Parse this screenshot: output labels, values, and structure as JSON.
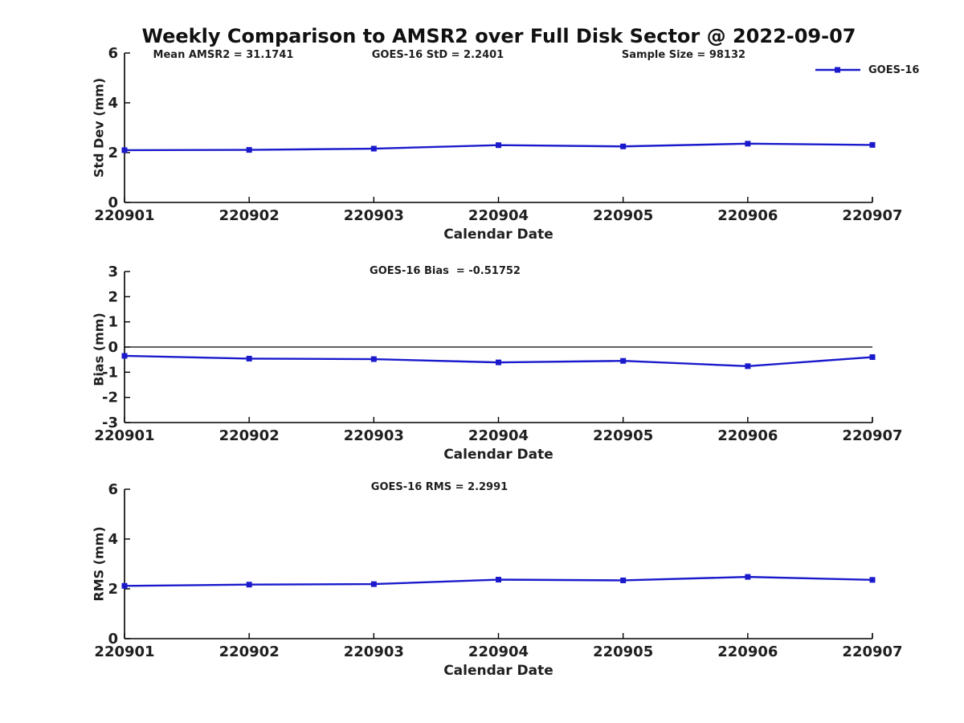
{
  "header": {
    "title": "Weekly Comparison to AMSR2 over Full Disk Sector @ 2022-09-07"
  },
  "legend": {
    "label": "GOES-16"
  },
  "colors": {
    "series": "#1a1acc",
    "axis": "#000000",
    "text": "#1f1f1f"
  },
  "chart_data": [
    {
      "type": "line",
      "ylabel": "Std Dev (mm)",
      "xlabel": "Calendar Date",
      "categories": [
        "220901",
        "220902",
        "220903",
        "220904",
        "220905",
        "220906",
        "220907"
      ],
      "series": [
        {
          "name": "GOES-16",
          "values": [
            2.1,
            2.11,
            2.16,
            2.3,
            2.25,
            2.36,
            2.31
          ]
        }
      ],
      "ylim": [
        0,
        6
      ],
      "yticks": [
        0,
        2,
        4,
        6
      ],
      "grid": false,
      "zero_line": false,
      "legend_position": "top-right",
      "annotations": [
        "Mean AMSR2 = 31.1741",
        "GOES-16 StD = 2.2401",
        "Sample Size = 98132"
      ]
    },
    {
      "type": "line",
      "ylabel": "Bias (mm)",
      "xlabel": "Calendar Date",
      "categories": [
        "220901",
        "220902",
        "220903",
        "220904",
        "220905",
        "220906",
        "220907"
      ],
      "series": [
        {
          "name": "GOES-16",
          "values": [
            -0.35,
            -0.46,
            -0.48,
            -0.61,
            -0.55,
            -0.76,
            -0.4
          ]
        }
      ],
      "ylim": [
        -3,
        3
      ],
      "yticks": [
        -3,
        -2,
        -1,
        0,
        1,
        2,
        3
      ],
      "grid": false,
      "zero_line": true,
      "annotations": [
        "GOES-16 Bias  = -0.51752"
      ]
    },
    {
      "type": "line",
      "ylabel": "RMS (mm)",
      "xlabel": "Calendar Date",
      "categories": [
        "220901",
        "220902",
        "220903",
        "220904",
        "220905",
        "220906",
        "220907"
      ],
      "series": [
        {
          "name": "GOES-16",
          "values": [
            2.12,
            2.17,
            2.19,
            2.37,
            2.34,
            2.48,
            2.36
          ]
        }
      ],
      "ylim": [
        0,
        6
      ],
      "yticks": [
        0,
        2,
        4,
        6
      ],
      "grid": false,
      "zero_line": false,
      "annotations": [
        "GOES-16 RMS = 2.2991"
      ]
    }
  ]
}
